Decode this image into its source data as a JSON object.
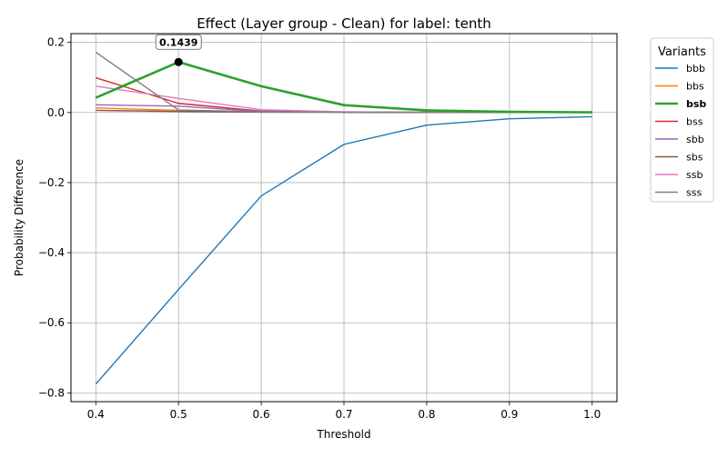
{
  "chart_data": {
    "type": "line",
    "title": "Effect (Layer group - Clean) for label: tenth",
    "xlabel": "Threshold",
    "ylabel": "Probability Difference",
    "x": [
      0.4,
      0.5,
      0.6,
      0.7,
      0.8,
      0.9,
      1.0
    ],
    "xlim": [
      0.37,
      1.03
    ],
    "ylim": [
      -0.825,
      0.225
    ],
    "xticks": [
      "0.4",
      "0.5",
      "0.6",
      "0.7",
      "0.8",
      "0.9",
      "1.0"
    ],
    "yticks": [
      "0.2",
      "0.0",
      "−0.2",
      "−0.4",
      "−0.6",
      "−0.8"
    ],
    "ytick_values": [
      0.2,
      0.0,
      -0.2,
      -0.4,
      -0.6,
      -0.8
    ],
    "grid": true,
    "legend": {
      "title": "Variants",
      "placement": "outside right"
    },
    "highlighted_series": "bsb",
    "annotation": {
      "text": "0.1439",
      "x": 0.5,
      "y": 0.1439
    },
    "series": [
      {
        "name": "bbb",
        "color": "#1f77b4",
        "values": [
          -0.775,
          -0.505,
          -0.238,
          -0.091,
          -0.036,
          -0.018,
          -0.012
        ]
      },
      {
        "name": "bbs",
        "color": "#ff7f0e",
        "values": [
          0.013,
          0.006,
          0.002,
          0.001,
          0.0005,
          0.0002,
          0.0001
        ]
      },
      {
        "name": "bsb",
        "color": "#2ca02c",
        "values": [
          0.042,
          0.1439,
          0.075,
          0.021,
          0.006,
          0.002,
          0.0005
        ]
      },
      {
        "name": "bss",
        "color": "#d62728",
        "values": [
          0.099,
          0.026,
          0.004,
          0.001,
          0.0005,
          0.0002,
          0.0001
        ]
      },
      {
        "name": "sbb",
        "color": "#9467bd",
        "values": [
          0.022,
          0.018,
          0.003,
          0.001,
          0.0005,
          0.0002,
          0.0001
        ]
      },
      {
        "name": "sbs",
        "color": "#8c564b",
        "values": [
          0.006,
          0.003,
          0.001,
          0.0005,
          0.0002,
          0.0001,
          0.0
        ]
      },
      {
        "name": "ssb",
        "color": "#e377c2",
        "values": [
          0.075,
          0.04,
          0.008,
          0.002,
          0.001,
          0.0005,
          0.0002
        ]
      },
      {
        "name": "sss",
        "color": "#7f7f7f",
        "values": [
          0.172,
          0.007,
          0.002,
          0.001,
          0.0005,
          0.0002,
          0.0001
        ]
      }
    ]
  }
}
